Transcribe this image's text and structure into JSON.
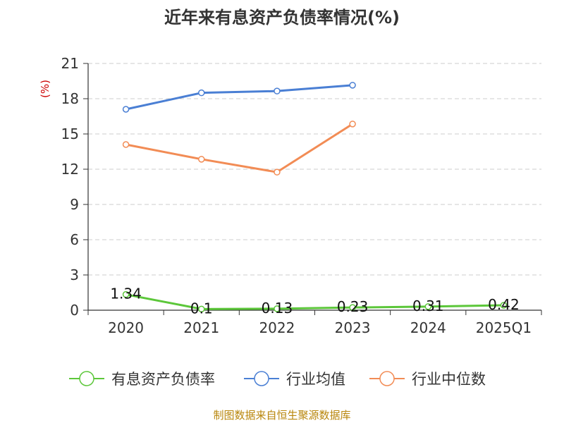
{
  "chart_data": {
    "type": "line",
    "title": "近年来有息资产负债率情况(%)",
    "unit_label": "(%)",
    "categories": [
      "2020",
      "2021",
      "2022",
      "2023",
      "2024",
      "2025Q1"
    ],
    "ylim": [
      0,
      21
    ],
    "yticks": [
      0,
      3,
      6,
      9,
      12,
      15,
      18,
      21
    ],
    "grid": true,
    "legend_position": "bottom",
    "series": [
      {
        "name": "有息资产负债率",
        "color": "#5cc73a",
        "values": [
          1.34,
          0.1,
          0.13,
          0.23,
          0.31,
          0.42
        ],
        "labels": [
          "1.34",
          "0.1",
          "0.13",
          "0.23",
          "0.31",
          "0.42"
        ]
      },
      {
        "name": "行业均值",
        "color": "#4a7fd4",
        "values": [
          17.1,
          18.5,
          18.65,
          19.15,
          null,
          null
        ]
      },
      {
        "name": "行业中位数",
        "color": "#f28c55",
        "values": [
          14.1,
          12.85,
          11.75,
          15.85,
          null,
          null
        ]
      }
    ],
    "source": "制图数据来自恒生聚源数据库"
  }
}
